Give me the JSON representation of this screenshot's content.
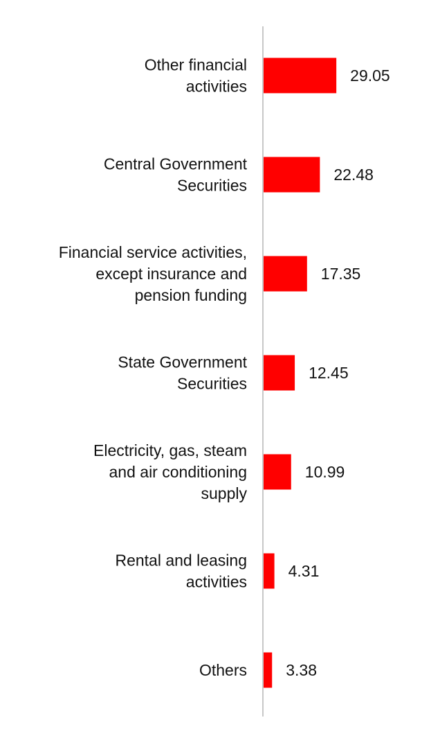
{
  "chart_data": {
    "type": "bar",
    "orientation": "horizontal",
    "categories": [
      [
        "Other financial",
        "activities"
      ],
      [
        "Central Government",
        "Securities"
      ],
      [
        "Financial service activities,",
        "except insurance and",
        "pension funding"
      ],
      [
        "State Government",
        "Securities"
      ],
      [
        "Electricity, gas, steam",
        "and air conditioning",
        "supply"
      ],
      [
        "Rental and leasing",
        "activities"
      ],
      [
        "Others"
      ]
    ],
    "values": [
      29.05,
      22.48,
      17.35,
      12.45,
      10.99,
      4.31,
      3.38
    ],
    "value_labels": [
      "29.05",
      "22.48",
      "17.35",
      "12.45",
      "10.99",
      "4.31",
      "3.38"
    ],
    "bar_color": "#ff0000",
    "axis_color": "#c8c8c8",
    "grid": false,
    "legend": "none"
  }
}
